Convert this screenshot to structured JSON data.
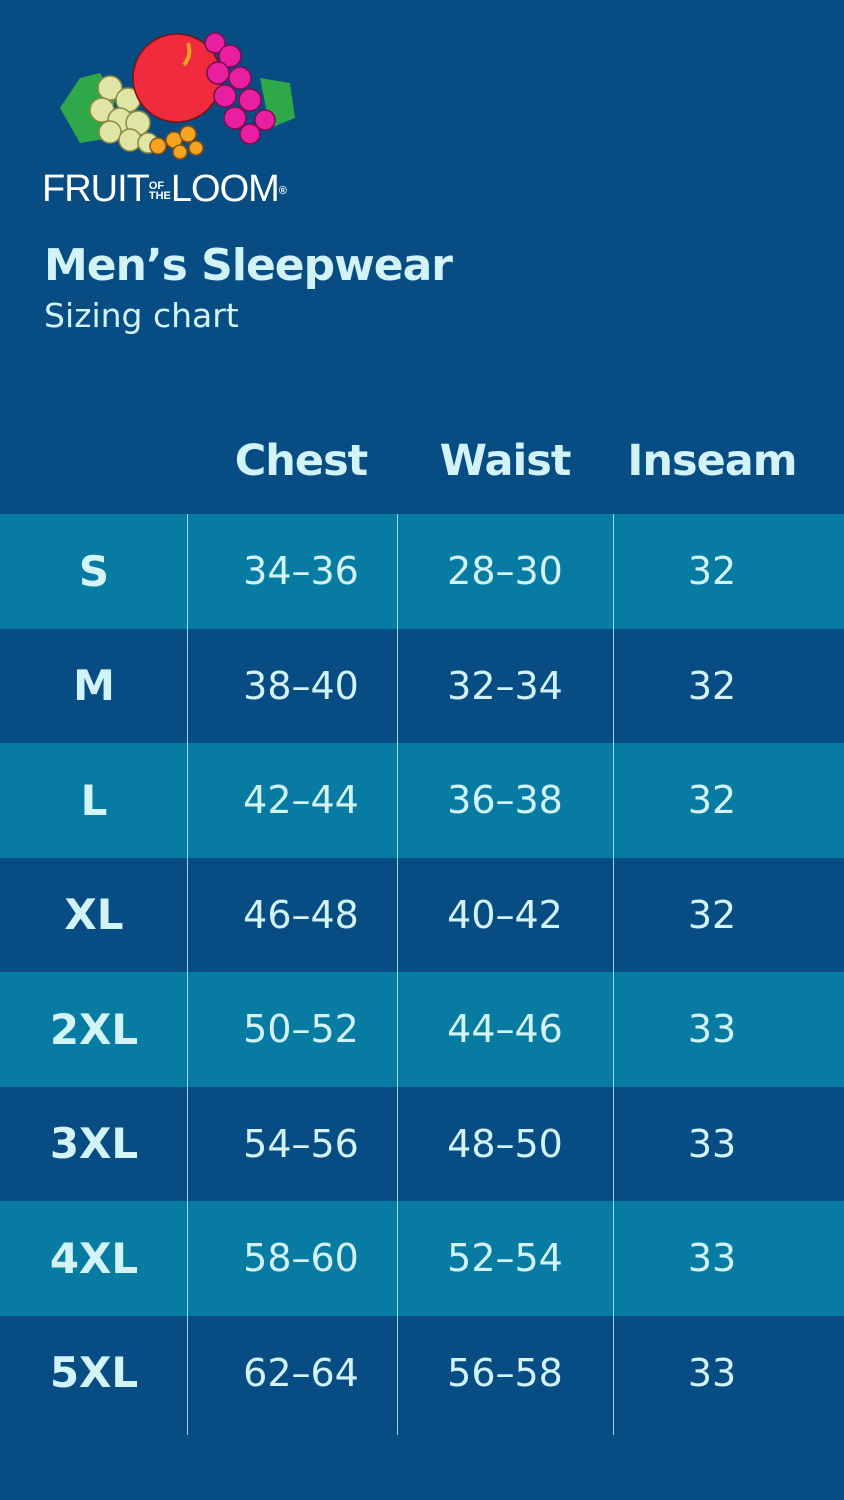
{
  "brand": {
    "name": "FRUIT OF THE LOOM",
    "logo_text_main1": "FRUIT",
    "logo_text_small1": "OF",
    "logo_text_small2": "THE",
    "logo_text_main2": "LOOM",
    "registered": "®"
  },
  "title": "Men’s Sleepwear",
  "subtitle": "Sizing chart",
  "colors": {
    "background": "#074c82",
    "teal_row": "#087ba2",
    "text": "#d2f3f8"
  },
  "table": {
    "headers": [
      "Chest",
      "Waist",
      "Inseam"
    ],
    "rows": [
      {
        "size": "S",
        "chest": "34–36",
        "waist": "28–30",
        "inseam": "32"
      },
      {
        "size": "M",
        "chest": "38–40",
        "waist": "32–34",
        "inseam": "32"
      },
      {
        "size": "L",
        "chest": "42–44",
        "waist": "36–38",
        "inseam": "32"
      },
      {
        "size": "XL",
        "chest": "46–48",
        "waist": "40–42",
        "inseam": "32"
      },
      {
        "size": "2XL",
        "chest": "50–52",
        "waist": "44–46",
        "inseam": "33"
      },
      {
        "size": "3XL",
        "chest": "54–56",
        "waist": "48–50",
        "inseam": "33"
      },
      {
        "size": "4XL",
        "chest": "58–60",
        "waist": "52–54",
        "inseam": "33"
      },
      {
        "size": "5XL",
        "chest": "62–64",
        "waist": "56–58",
        "inseam": "33"
      }
    ]
  }
}
